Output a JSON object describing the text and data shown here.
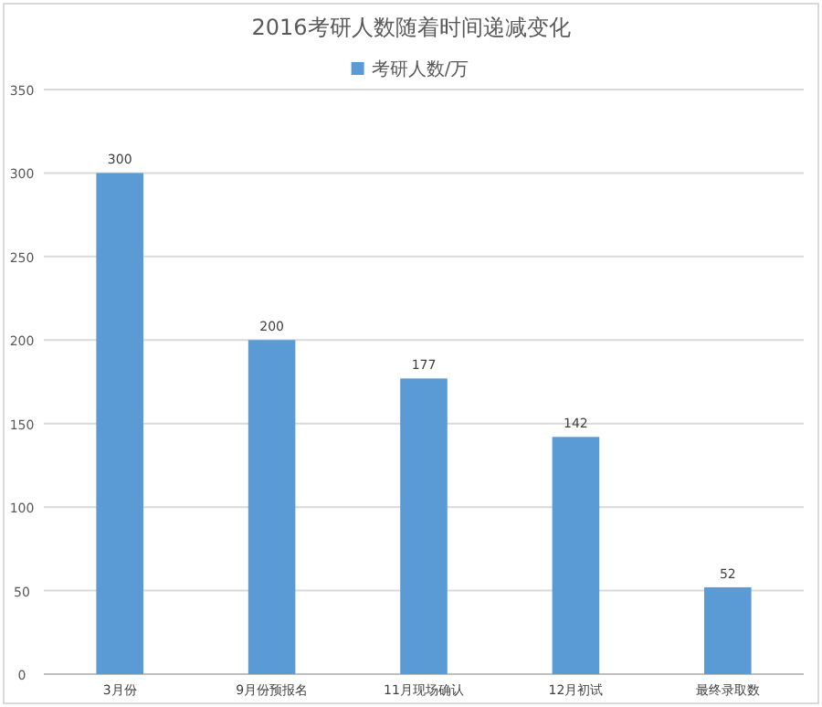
{
  "chart_data": {
    "type": "bar",
    "title": "2016考研人数随着时间递减变化",
    "categories": [
      "3月份",
      "9月份预报名",
      "11月现场确认",
      "12月初试",
      "最终录取数"
    ],
    "series": [
      {
        "name": "考研人数/万",
        "color": "#5b9bd5",
        "values": [
          300,
          200,
          177,
          142,
          52
        ]
      }
    ],
    "ylim": [
      0,
      350
    ],
    "yticks": [
      0,
      50,
      100,
      150,
      200,
      250,
      300,
      350
    ],
    "grid": "y",
    "legend": "top",
    "data_labels": true
  }
}
